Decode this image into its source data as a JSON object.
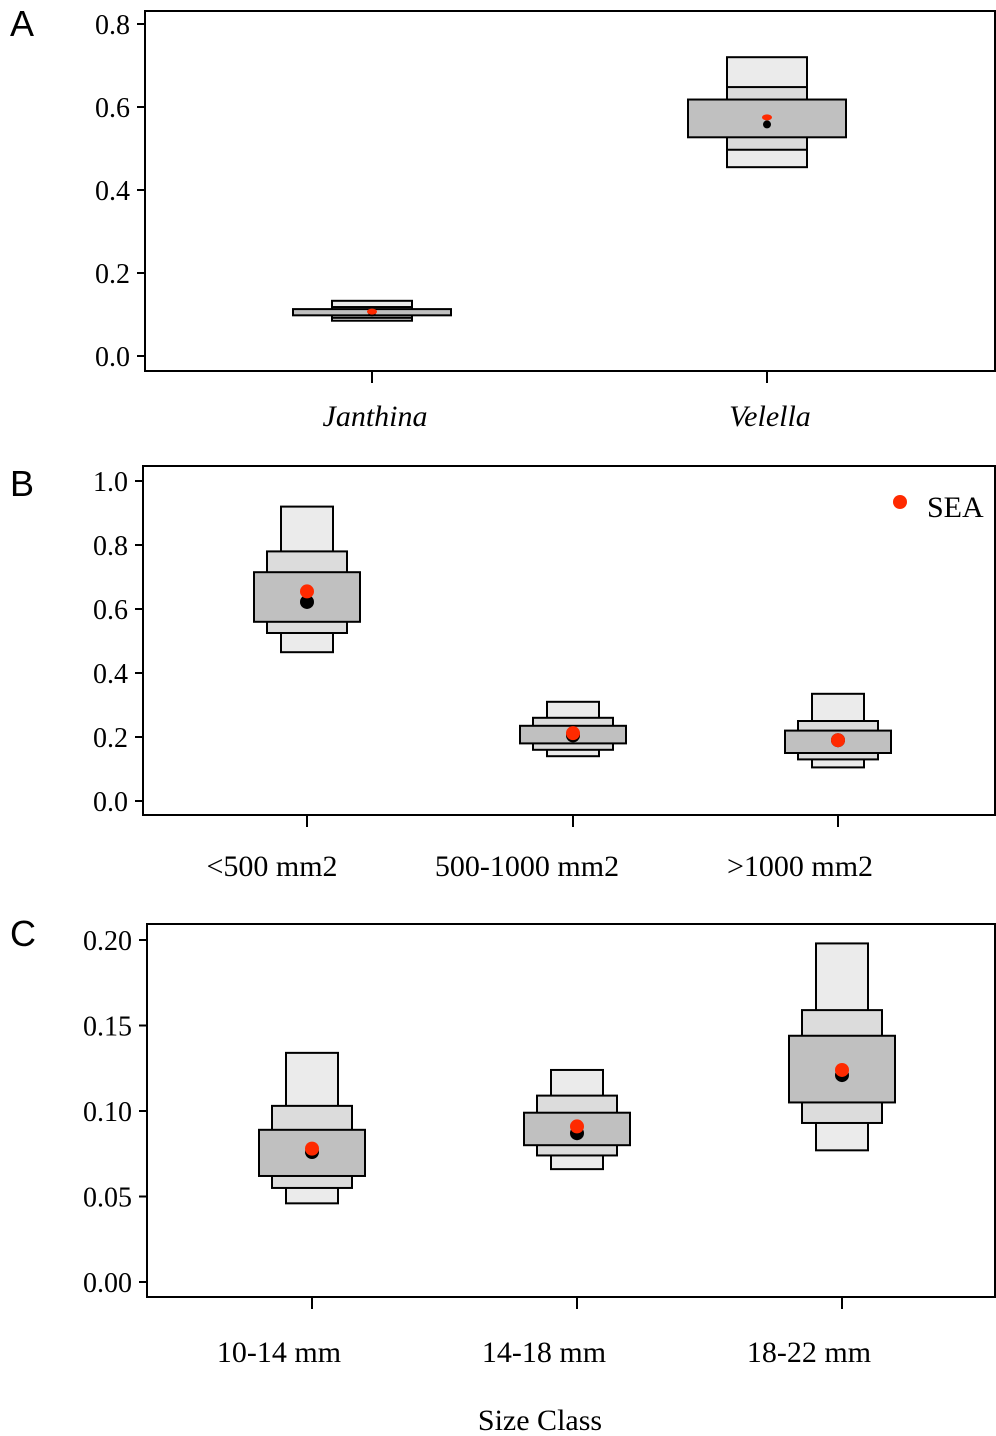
{
  "colors": {
    "band95": "#ebebeb",
    "band75": "#dcdcdc",
    "band50": "#c0c0c0",
    "mode": "#000000",
    "sea": "#ff2a00"
  },
  "legend": {
    "label": "SEA",
    "position": "top-right"
  },
  "x_axis_title": "Size Class",
  "chart_data": [
    {
      "type": "box",
      "panel_letter": "A",
      "ylim": [
        0,
        0.8
      ],
      "yticks": [
        "0.0",
        "0.2",
        "0.4",
        "0.6",
        "0.8"
      ],
      "categories": [
        "Janthina",
        "Velella"
      ],
      "italic_categories": true,
      "series": [
        {
          "category": "Janthina",
          "mode": 0.105,
          "sea": 0.107,
          "ci95": [
            0.085,
            0.133
          ],
          "ci75": [
            0.092,
            0.118
          ],
          "ci50": [
            0.098,
            0.113
          ]
        },
        {
          "category": "Velella",
          "mode": 0.558,
          "sea": 0.575,
          "ci95": [
            0.455,
            0.72
          ],
          "ci75": [
            0.497,
            0.648
          ],
          "ci50": [
            0.527,
            0.618
          ]
        }
      ]
    },
    {
      "type": "box",
      "panel_letter": "B",
      "ylim": [
        0,
        1.0
      ],
      "yticks": [
        "0.0",
        "0.2",
        "0.4",
        "0.6",
        "0.8",
        "1.0"
      ],
      "categories": [
        "<500 mm2",
        "500-1000 mm2",
        ">1000 mm2"
      ],
      "italic_categories": false,
      "series": [
        {
          "category": "<500 mm2",
          "mode": 0.622,
          "sea": 0.655,
          "ci95": [
            0.465,
            0.92
          ],
          "ci75": [
            0.525,
            0.78
          ],
          "ci50": [
            0.56,
            0.715
          ]
        },
        {
          "category": "500-1000 mm2",
          "mode": 0.205,
          "sea": 0.212,
          "ci95": [
            0.14,
            0.31
          ],
          "ci75": [
            0.16,
            0.26
          ],
          "ci50": [
            0.18,
            0.235
          ]
        },
        {
          "category": ">1000 mm2",
          "mode": 0.19,
          "sea": 0.19,
          "ci95": [
            0.105,
            0.335
          ],
          "ci75": [
            0.13,
            0.25
          ],
          "ci50": [
            0.15,
            0.22
          ]
        }
      ]
    },
    {
      "type": "box",
      "panel_letter": "C",
      "ylim": [
        0,
        0.2
      ],
      "yticks": [
        "0.00",
        "0.05",
        "0.10",
        "0.15",
        "0.20"
      ],
      "categories": [
        "10-14 mm",
        "14-18 mm",
        "18-22 mm"
      ],
      "italic_categories": false,
      "series": [
        {
          "category": "10-14 mm",
          "mode": 0.076,
          "sea": 0.078,
          "ci95": [
            0.046,
            0.134
          ],
          "ci75": [
            0.055,
            0.103
          ],
          "ci50": [
            0.062,
            0.089
          ]
        },
        {
          "category": "14-18 mm",
          "mode": 0.087,
          "sea": 0.091,
          "ci95": [
            0.066,
            0.124
          ],
          "ci75": [
            0.074,
            0.109
          ],
          "ci50": [
            0.08,
            0.099
          ]
        },
        {
          "category": "18-22 mm",
          "mode": 0.121,
          "sea": 0.124,
          "ci95": [
            0.077,
            0.198
          ],
          "ci75": [
            0.093,
            0.159
          ],
          "ci50": [
            0.105,
            0.144
          ]
        }
      ]
    }
  ]
}
